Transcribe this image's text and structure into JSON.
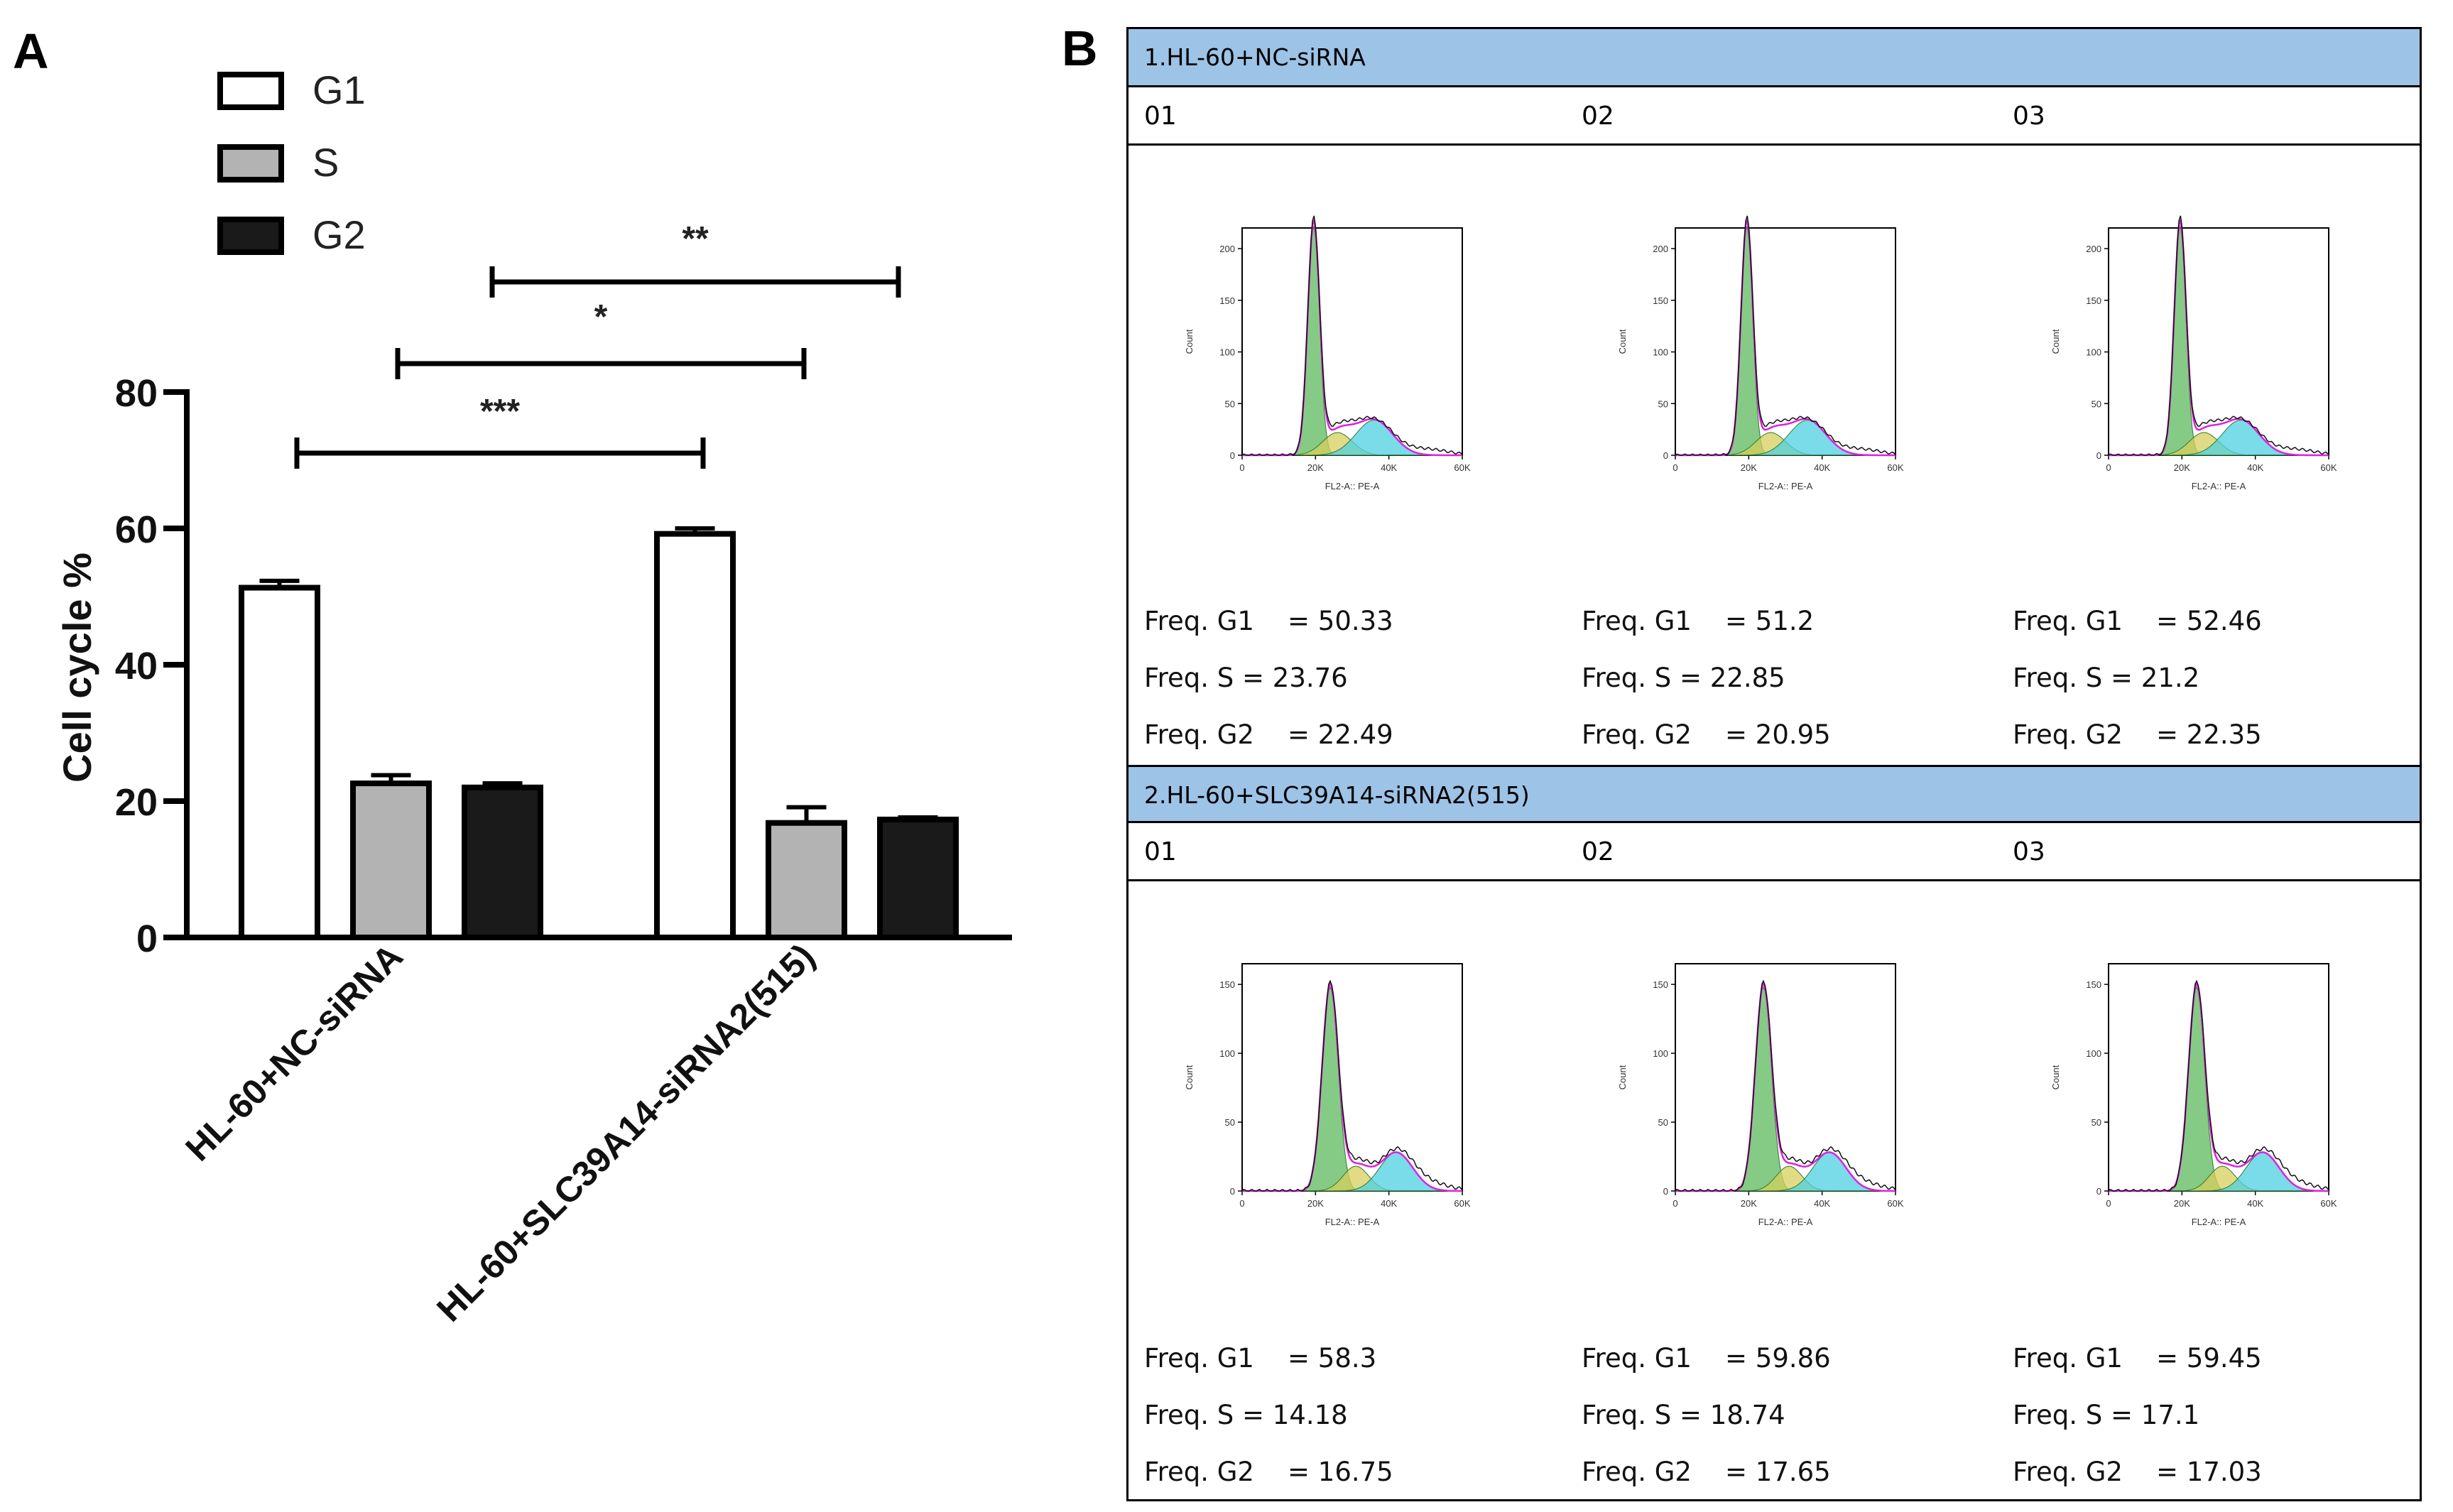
{
  "panel_a": {
    "letter": "A"
  },
  "panel_b": {
    "letter": "B",
    "groups": [
      {
        "header": "1.HL-60+NC-siRNA",
        "replicates": [
          {
            "id": "01",
            "g1": "50.33",
            "s": "23.76",
            "g2": "22.49"
          },
          {
            "id": "02",
            "g1": "51.2",
            "s": "22.85",
            "g2": "20.95"
          },
          {
            "id": "03",
            "g1": "52.46",
            "s": "21.2",
            "g2": "22.35"
          }
        ],
        "yticks": [
          "0",
          "50",
          "100",
          "150",
          "200"
        ]
      },
      {
        "header": "2.HL-60+SLC39A14-siRNA2(515)",
        "replicates": [
          {
            "id": "01",
            "g1": "58.3",
            "s": "14.18",
            "g2": "16.75"
          },
          {
            "id": "02",
            "g1": "59.86",
            "s": "18.74",
            "g2": "17.65"
          },
          {
            "id": "03",
            "g1": "59.45",
            "s": "17.1",
            "g2": "17.03"
          }
        ],
        "yticks": [
          "0",
          "50",
          "100",
          "150"
        ]
      }
    ],
    "freq_labels": {
      "g1": "Freq. G1    = ",
      "s": "Freq. S = ",
      "g2": "Freq. G2    = "
    },
    "hist_labels": {
      "xlabel": "FL2-A:: PE-A",
      "ylabel": "Count",
      "xticks": [
        "0",
        "20K",
        "40K",
        "60K"
      ]
    }
  },
  "chart_data": {
    "type": "bar",
    "categories": [
      "HL-60+NC-siRNA",
      "HL-60+SLC39A14-siRNA2(515)"
    ],
    "series": [
      {
        "name": "G1",
        "values": [
          51.3,
          59.2
        ],
        "errors": [
          1.0,
          0.8
        ],
        "color": "#ffffff"
      },
      {
        "name": "S",
        "values": [
          22.6,
          16.8
        ],
        "errors": [
          1.2,
          2.3
        ],
        "color": "#b3b3b3"
      },
      {
        "name": "G2",
        "values": [
          22.0,
          17.3
        ],
        "errors": [
          0.6,
          0.3
        ],
        "color": "#1a1a1a"
      }
    ],
    "ylabel": "Cell cycle %",
    "ylim": [
      0,
      80
    ],
    "yticks": [
      "0",
      "20",
      "40",
      "60",
      "80"
    ],
    "legend": [
      "G1",
      "S",
      "G2"
    ],
    "significance": [
      {
        "label": "***",
        "from": "HL-60+NC-siRNA G1",
        "to": "HL-60+SLC39A14-siRNA2(515) G1"
      },
      {
        "label": "*",
        "from": "HL-60+NC-siRNA S",
        "to": "HL-60+SLC39A14-siRNA2(515) S"
      },
      {
        "label": "**",
        "from": "HL-60+NC-siRNA G2",
        "to": "HL-60+SLC39A14-siRNA2(515) G2"
      }
    ]
  }
}
